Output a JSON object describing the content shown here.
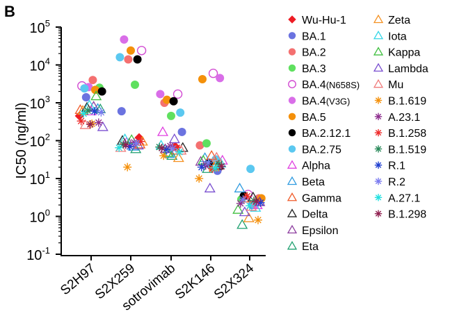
{
  "panel_letter": "B",
  "chart_data": {
    "type": "scatter",
    "title": "",
    "xlabel": "",
    "ylabel": "IC50 (ng/ml)",
    "yscale": "log",
    "ylim": [
      0.1,
      100000
    ],
    "y_ticks": [
      {
        "base": "10",
        "exp": "-1"
      },
      {
        "base": "10",
        "exp": "0"
      },
      {
        "base": "10",
        "exp": "1"
      },
      {
        "base": "10",
        "exp": "2"
      },
      {
        "base": "10",
        "exp": "3"
      },
      {
        "base": "10",
        "exp": "4"
      },
      {
        "base": "10",
        "exp": "5"
      }
    ],
    "categories": [
      "S2H97",
      "S2X259",
      "sotrovimab",
      "S2K146",
      "S2X324"
    ],
    "grid": false,
    "legend_position": "right",
    "series": [
      {
        "name": "Wu-Hu-1",
        "label_main": "Wu-Hu-1",
        "label_sub": "",
        "marker": "diamond",
        "filled": true,
        "color": "#ee1c24",
        "values": [
          450,
          120,
          70,
          25,
          3.5
        ]
      },
      {
        "name": "BA.1",
        "label_main": "BA.1",
        "label_sub": "",
        "marker": "circle",
        "filled": true,
        "color": "#6b73e0",
        "values": [
          1400,
          600,
          170,
          16,
          2
        ]
      },
      {
        "name": "BA.2",
        "label_main": "BA.2",
        "label_sub": "",
        "marker": "circle",
        "filled": true,
        "color": "#f47070",
        "values": [
          4000,
          14000,
          1000,
          75,
          3
        ]
      },
      {
        "name": "BA.3",
        "label_main": "BA.3",
        "label_sub": "",
        "marker": "circle",
        "filled": true,
        "color": "#5fe05f",
        "values": [
          2500,
          3000,
          450,
          85,
          2.8
        ]
      },
      {
        "name": "BA.4(N658S)",
        "label_main": "BA.4",
        "label_sub": "(N658S)",
        "marker": "circle",
        "filled": false,
        "color": "#d24bd2",
        "values": [
          2800,
          24000,
          1700,
          6000,
          3.8
        ]
      },
      {
        "name": "BA.4(V3G)",
        "label_main": "BA.4",
        "label_sub": "(V3G)",
        "marker": "circle",
        "filled": true,
        "color": "#d96ee8",
        "values": [
          2600,
          47000,
          1700,
          4500,
          2
        ]
      },
      {
        "name": "BA.5",
        "label_main": "BA.5",
        "label_sub": "",
        "marker": "circle",
        "filled": true,
        "color": "#f4900a",
        "values": [
          2200,
          24000,
          1200,
          4200,
          3
        ]
      },
      {
        "name": "BA.2.12.1",
        "label_main": "BA.2.12.1",
        "label_sub": "",
        "marker": "circle",
        "filled": true,
        "color": "#000000",
        "values": [
          2000,
          14000,
          1100,
          26,
          3.5
        ]
      },
      {
        "name": "BA.2.75",
        "label_main": "BA.2.75",
        "label_sub": "",
        "marker": "circle",
        "filled": true,
        "color": "#5bc8f0",
        "values": [
          2400,
          16000,
          550,
          32,
          18
        ]
      },
      {
        "name": "Alpha",
        "label_main": "Alpha",
        "label_sub": "",
        "marker": "triangle",
        "filled": false,
        "color": "#e040e0",
        "values": [
          600,
          90,
          170,
          30,
          2
        ]
      },
      {
        "name": "Beta",
        "label_main": "Beta",
        "label_sub": "",
        "marker": "triangle",
        "filled": false,
        "color": "#2f9be0",
        "values": [
          700,
          70,
          45,
          35,
          5.5
        ]
      },
      {
        "name": "Gamma",
        "label_main": "Gamma",
        "label_sub": "",
        "marker": "triangle",
        "filled": false,
        "color": "#f05a28",
        "values": [
          650,
          80,
          55,
          40,
          3
        ]
      },
      {
        "name": "Delta",
        "label_main": "Delta",
        "label_sub": "",
        "marker": "triangle",
        "filled": false,
        "color": "#222222",
        "values": [
          750,
          100,
          65,
          22,
          3.2
        ]
      },
      {
        "name": "Epsilon",
        "label_main": "Epsilon",
        "label_sub": "",
        "marker": "triangle",
        "filled": false,
        "color": "#8e3fa0",
        "values": [
          800,
          85,
          60,
          28,
          2.4
        ]
      },
      {
        "name": "Eta",
        "label_main": "Eta",
        "label_sub": "",
        "marker": "triangle",
        "filled": false,
        "color": "#1fa070",
        "values": [
          680,
          60,
          40,
          18,
          0.6
        ]
      },
      {
        "name": "Zeta",
        "label_main": "Zeta",
        "label_sub": "",
        "marker": "triangle",
        "filled": false,
        "color": "#f49020",
        "values": [
          620,
          95,
          35,
          20,
          0.9
        ]
      },
      {
        "name": "Iota",
        "label_main": "Iota",
        "label_sub": "",
        "marker": "triangle",
        "filled": false,
        "color": "#33d6e6",
        "values": [
          860,
          110,
          75,
          25,
          1.7
        ]
      },
      {
        "name": "Kappa",
        "label_main": "Kappa",
        "label_sub": "",
        "marker": "triangle",
        "filled": false,
        "color": "#3fbf3f",
        "values": [
          1500,
          105,
          48,
          30,
          1.5
        ]
      },
      {
        "name": "Lambda",
        "label_main": "Lambda",
        "label_sub": "",
        "marker": "triangle",
        "filled": false,
        "color": "#7a4fd0",
        "values": [
          230,
          75,
          110,
          5.5,
          1.3
        ]
      },
      {
        "name": "Mu",
        "label_main": "Mu",
        "label_sub": "",
        "marker": "triangle",
        "filled": false,
        "color": "#f07a7a",
        "values": [
          260,
          65,
          55,
          36,
          1.8
        ]
      },
      {
        "name": "B.1.619",
        "label_main": "B.1.619",
        "label_sub": "",
        "marker": "star",
        "filled": false,
        "color": "#f4900a",
        "values": [
          280,
          20,
          40,
          10,
          0.8
        ]
      },
      {
        "name": "A.23.1",
        "label_main": "A.23.1",
        "label_sub": "",
        "marker": "star",
        "filled": false,
        "color": "#8e2f8e",
        "values": [
          300,
          90,
          72,
          22,
          2.2
        ]
      },
      {
        "name": "B.1.258",
        "label_main": "B.1.258",
        "label_sub": "",
        "marker": "star",
        "filled": false,
        "color": "#ee2a2a",
        "values": [
          330,
          95,
          65,
          18,
          3.4
        ]
      },
      {
        "name": "B.1.519",
        "label_main": "B.1.519",
        "label_sub": "",
        "marker": "star",
        "filled": false,
        "color": "#2a8a5a",
        "values": [
          620,
          80,
          68,
          24,
          2.6
        ]
      },
      {
        "name": "R.1",
        "label_main": "R.1",
        "label_sub": "",
        "marker": "star",
        "filled": false,
        "color": "#1f3fd0",
        "values": [
          600,
          70,
          58,
          20,
          2.3
        ]
      },
      {
        "name": "R.2",
        "label_main": "R.2",
        "label_sub": "",
        "marker": "star",
        "filled": false,
        "color": "#7a7af0",
        "values": [
          560,
          85,
          62,
          26,
          2.8
        ]
      },
      {
        "name": "A.27.1",
        "label_main": "A.27.1",
        "label_sub": "",
        "marker": "star",
        "filled": false,
        "color": "#22e0e0",
        "values": [
          520,
          65,
          50,
          19,
          1.9
        ]
      },
      {
        "name": "B.1.298",
        "label_main": "B.1.298",
        "label_sub": "",
        "marker": "star",
        "filled": false,
        "color": "#902050",
        "values": [
          270,
          78,
          64,
          21,
          2.5
        ]
      }
    ]
  }
}
